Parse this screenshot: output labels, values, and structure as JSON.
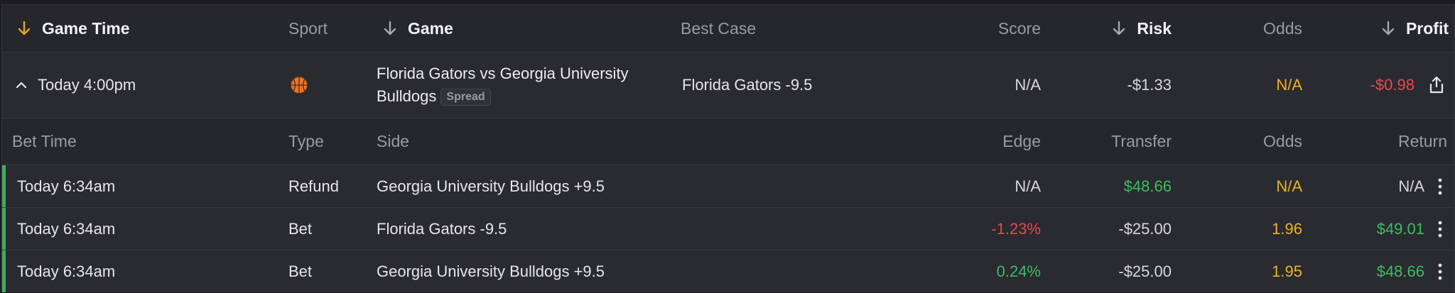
{
  "header": {
    "game_time": "Game Time",
    "sport": "Sport",
    "game": "Game",
    "best_case": "Best Case",
    "score": "Score",
    "risk": "Risk",
    "odds": "Odds",
    "profit": "Profit"
  },
  "game": {
    "time": "Today 4:00pm",
    "sport_icon": "basketball-icon",
    "name": "Florida Gators vs Georgia University Bulldogs",
    "market_badge": "Spread",
    "best_case": "Florida Gators -9.5",
    "score": "N/A",
    "risk": "-$1.33",
    "odds": "N/A",
    "profit": "-$0.98"
  },
  "bets_header": {
    "bet_time": "Bet Time",
    "type": "Type",
    "side": "Side",
    "edge": "Edge",
    "transfer": "Transfer",
    "odds": "Odds",
    "return": "Return"
  },
  "bets": [
    {
      "time": "Today 6:34am",
      "type": "Refund",
      "side": "Georgia University Bulldogs +9.5",
      "edge": "N/A",
      "transfer": "$48.66",
      "odds": "N/A",
      "return": "N/A"
    },
    {
      "time": "Today 6:34am",
      "type": "Bet",
      "side": "Florida Gators -9.5",
      "edge": "-1.23%",
      "transfer": "-$25.00",
      "odds": "1.96",
      "return": "$49.01"
    },
    {
      "time": "Today 6:34am",
      "type": "Bet",
      "side": "Georgia University Bulldogs +9.5",
      "edge": "0.24%",
      "transfer": "-$25.00",
      "odds": "1.95",
      "return": "$48.66"
    }
  ],
  "colors": {
    "accent_sort": "#e2a72b",
    "negative": "#e5484d",
    "positive": "#3fbd5e",
    "odds": "#eeb21f",
    "bet_indicator": "#3fae5d"
  }
}
